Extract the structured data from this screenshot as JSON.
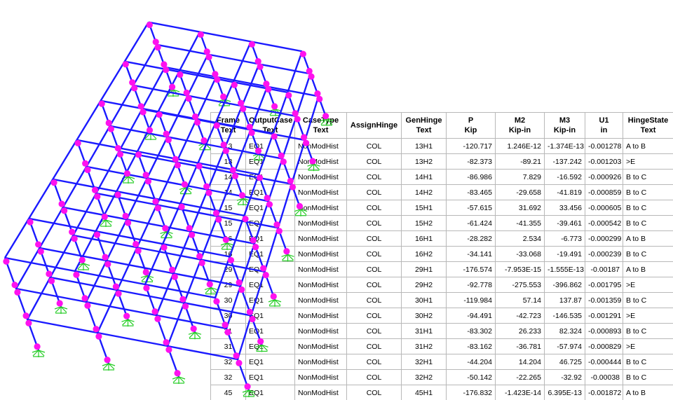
{
  "table": {
    "columns": [
      {
        "name": "Frame",
        "unit": "Text"
      },
      {
        "name": "OutputCase",
        "unit": "Text"
      },
      {
        "name": "CaseType",
        "unit": "Text"
      },
      {
        "name": "AssignHinge"
      },
      {
        "name": "GenHinge",
        "unit": "Text"
      },
      {
        "name": "P",
        "unit": "Kip"
      },
      {
        "name": "M2",
        "unit": "Kip-in"
      },
      {
        "name": "M3",
        "unit": "Kip-in"
      },
      {
        "name": "U1",
        "unit": "in"
      },
      {
        "name": "HingeState",
        "unit": "Text"
      }
    ],
    "rows": [
      [
        "13",
        "EQ1",
        "NonModHist",
        "COL",
        "13H1",
        "-120.717",
        "1.246E-12",
        "-1.374E-13",
        "-0.001278",
        "A to B"
      ],
      [
        "13",
        "EQ1",
        "NonModHist",
        "COL",
        "13H2",
        "-82.373",
        "-89.21",
        "-137.242",
        "-0.001203",
        ">E"
      ],
      [
        "14",
        "EQ1",
        "NonModHist",
        "COL",
        "14H1",
        "-86.986",
        "7.829",
        "-16.592",
        "-0.000926",
        "B to C"
      ],
      [
        "14",
        "EQ1",
        "NonModHist",
        "COL",
        "14H2",
        "-83.465",
        "-29.658",
        "-41.819",
        "-0.000859",
        "B to C"
      ],
      [
        "15",
        "EQ1",
        "NonModHist",
        "COL",
        "15H1",
        "-57.615",
        "31.692",
        "33.456",
        "-0.000605",
        "B to C"
      ],
      [
        "15",
        "EQ1",
        "NonModHist",
        "COL",
        "15H2",
        "-61.424",
        "-41.355",
        "-39.461",
        "-0.000542",
        "B to C"
      ],
      [
        "16",
        "EQ1",
        "NonModHist",
        "COL",
        "16H1",
        "-28.282",
        "2.534",
        "-6.773",
        "-0.000299",
        "A to B"
      ],
      [
        "16",
        "EQ1",
        "NonModHist",
        "COL",
        "16H2",
        "-34.141",
        "-33.068",
        "-19.491",
        "-0.000239",
        "B to C"
      ],
      [
        "29",
        "EQ1",
        "NonModHist",
        "COL",
        "29H1",
        "-176.574",
        "-7.953E-15",
        "-1.555E-13",
        "-0.00187",
        "A to B"
      ],
      [
        "29",
        "EQ1",
        "NonModHist",
        "COL",
        "29H2",
        "-92.778",
        "-275.553",
        "-396.862",
        "-0.001795",
        ">E"
      ],
      [
        "30",
        "EQ1",
        "NonModHist",
        "COL",
        "30H1",
        "-119.984",
        "57.14",
        "137.87",
        "-0.001359",
        "B to C"
      ],
      [
        "30",
        "EQ1",
        "NonModHist",
        "COL",
        "30H2",
        "-94.491",
        "-42.723",
        "-146.535",
        "-0.001291",
        ">E"
      ],
      [
        "31",
        "EQ1",
        "NonModHist",
        "COL",
        "31H1",
        "-83.302",
        "26.233",
        "82.324",
        "-0.000893",
        "B to C"
      ],
      [
        "31",
        "EQ1",
        "NonModHist",
        "COL",
        "31H2",
        "-83.162",
        "-36.781",
        "-57.974",
        "-0.000829",
        ">E"
      ],
      [
        "32",
        "EQ1",
        "NonModHist",
        "COL",
        "32H1",
        "-44.204",
        "14.204",
        "46.725",
        "-0.000444",
        "B to C"
      ],
      [
        "32",
        "EQ1",
        "NonModHist",
        "COL",
        "32H2",
        "-50.142",
        "-22.265",
        "-32.92",
        "-0.00038",
        "B to C"
      ],
      [
        "45",
        "EQ1",
        "NonModHist",
        "COL",
        "45H1",
        "-176.832",
        "-1.423E-14",
        "6.395E-13",
        "-0.001872",
        "A to B"
      ]
    ]
  }
}
